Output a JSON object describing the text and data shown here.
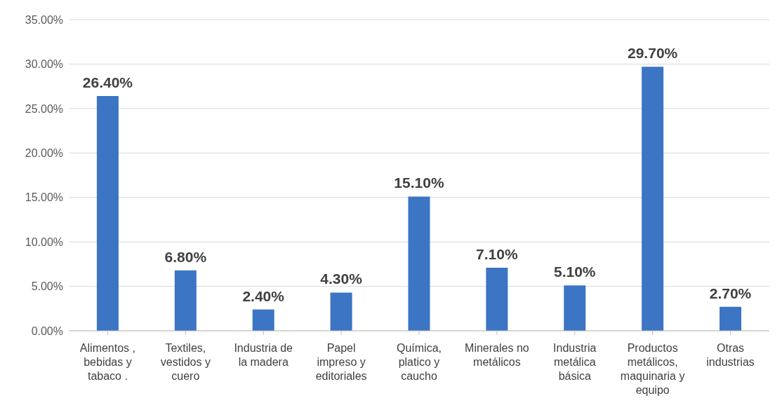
{
  "chart_data": {
    "type": "bar",
    "categories": [
      "Alimentos , bebidas y tabaco .",
      "Textiles, vestidos y cuero",
      "Industria de la madera",
      "Papel impreso y editoriales",
      "Química, platico y caucho",
      "Minerales no metálicos",
      "Industria metálica básica",
      "Productos metálicos, maquinaria y equipo",
      "Otras industrias"
    ],
    "values": [
      26.4,
      6.8,
      2.4,
      4.3,
      15.1,
      7.1,
      5.1,
      29.7,
      2.7
    ],
    "value_labels": [
      "26.40%",
      "6.80%",
      "2.40%",
      "4.30%",
      "15.10%",
      "7.10%",
      "5.10%",
      "29.70%",
      "2.70%"
    ],
    "color": "#3b75c4",
    "ylim": [
      0,
      35
    ],
    "yticks": [
      {
        "value": 0,
        "label": "0.00%"
      },
      {
        "value": 5,
        "label": "5.00%"
      },
      {
        "value": 10,
        "label": "10.00%"
      },
      {
        "value": 15,
        "label": "15.00%"
      },
      {
        "value": 20,
        "label": "20.00%"
      },
      {
        "value": 25,
        "label": "25.00%"
      },
      {
        "value": 30,
        "label": "30.00%"
      },
      {
        "value": 35,
        "label": "35.00%"
      }
    ],
    "grid": "y",
    "legend": false
  }
}
